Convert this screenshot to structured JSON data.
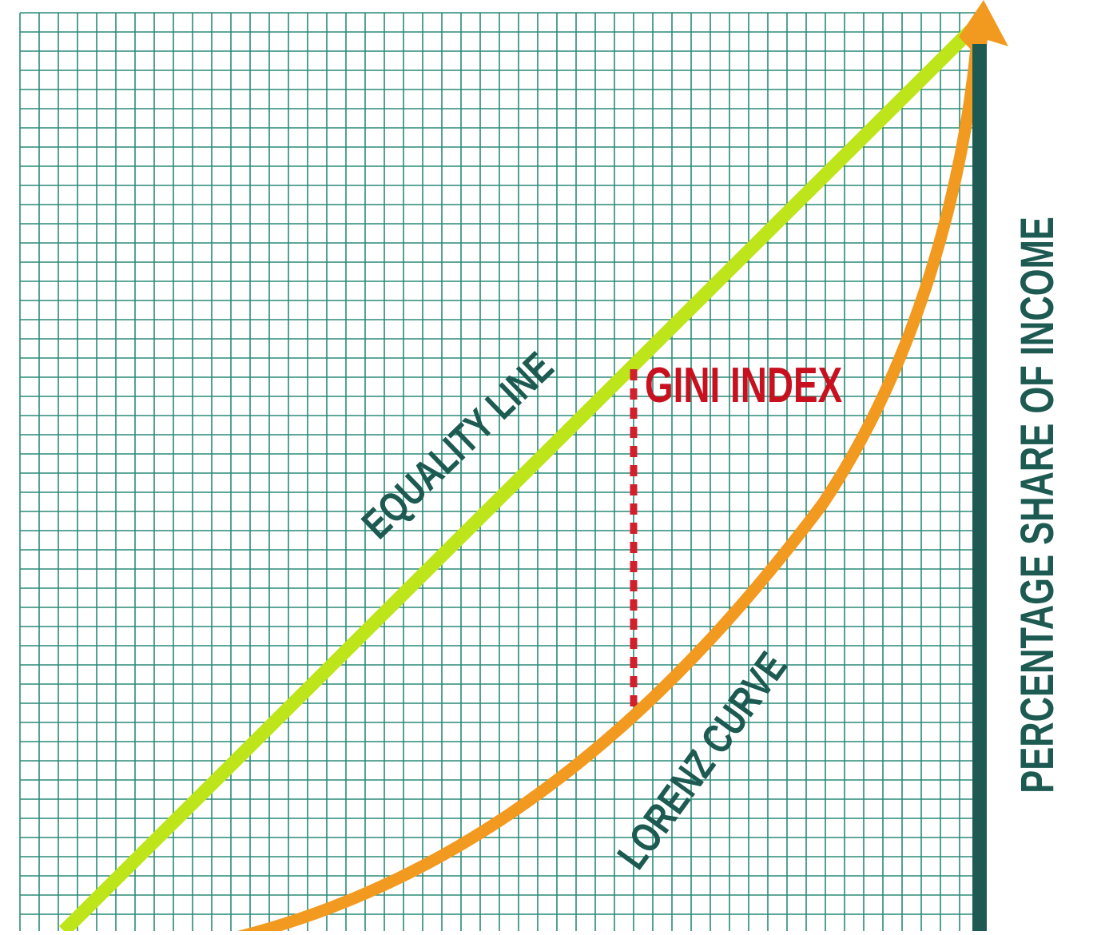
{
  "diagram": {
    "labels": {
      "equality_line": "EQUALITY LINE",
      "gini_index": "GINI INDEX",
      "lorenz_curve": "LORENZ CURVE",
      "y_axis": "PERCENTAGE SHARE OF INCOME"
    },
    "colors": {
      "background": "#ffffff",
      "grid": "#2a8a78",
      "equality_line": "#bde51a",
      "lorenz_curve": "#f19a1f",
      "axis": "#1d5a52",
      "gini_marker": "#d1202c",
      "label_text": "#1d5a52",
      "gini_text": "#c8101e"
    }
  }
}
